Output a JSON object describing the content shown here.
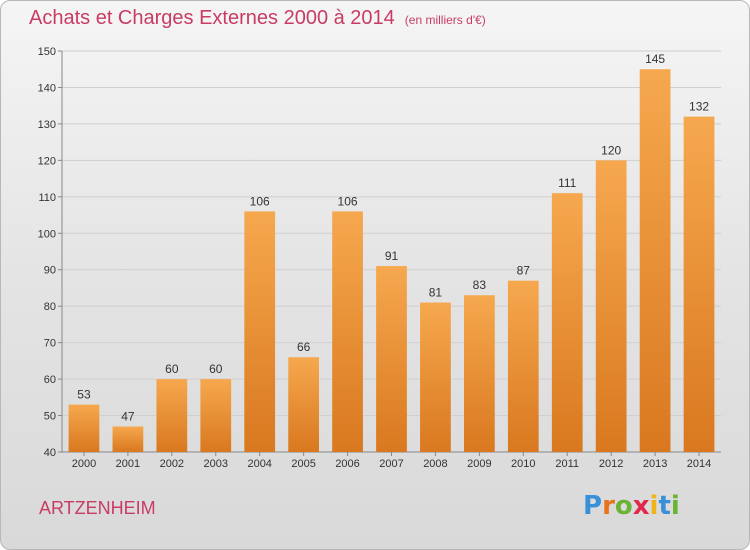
{
  "title": "Achats et Charges Externes 2000 à 2014",
  "title_unit": "(en milliers d'€)",
  "commune": "ARTZENHEIM",
  "logo": {
    "letters": [
      "P",
      "r",
      "o",
      "x",
      "i",
      "t",
      "i"
    ],
    "colors": [
      "#3a8fd9",
      "#e8731c",
      "#6ab335",
      "#e0294a",
      "#f0b419",
      "#3a8fd9",
      "#6ab335"
    ]
  },
  "colors": {
    "bar_top": "#f6a84e",
    "bar_bottom": "#d9781f",
    "title": "#c83c64"
  },
  "chart_data": {
    "type": "bar",
    "title": "Achats et Charges Externes 2000 à 2014",
    "categories": [
      "2000",
      "2001",
      "2002",
      "2003",
      "2004",
      "2005",
      "2006",
      "2007",
      "2008",
      "2009",
      "2010",
      "2011",
      "2012",
      "2013",
      "2014"
    ],
    "values": [
      53,
      47,
      60,
      60,
      106,
      66,
      106,
      91,
      81,
      83,
      87,
      111,
      120,
      145,
      132
    ],
    "ylim": [
      40,
      150
    ],
    "yticks": [
      40,
      50,
      60,
      70,
      80,
      90,
      100,
      110,
      120,
      130,
      140,
      150
    ],
    "grid": "horizontal"
  }
}
